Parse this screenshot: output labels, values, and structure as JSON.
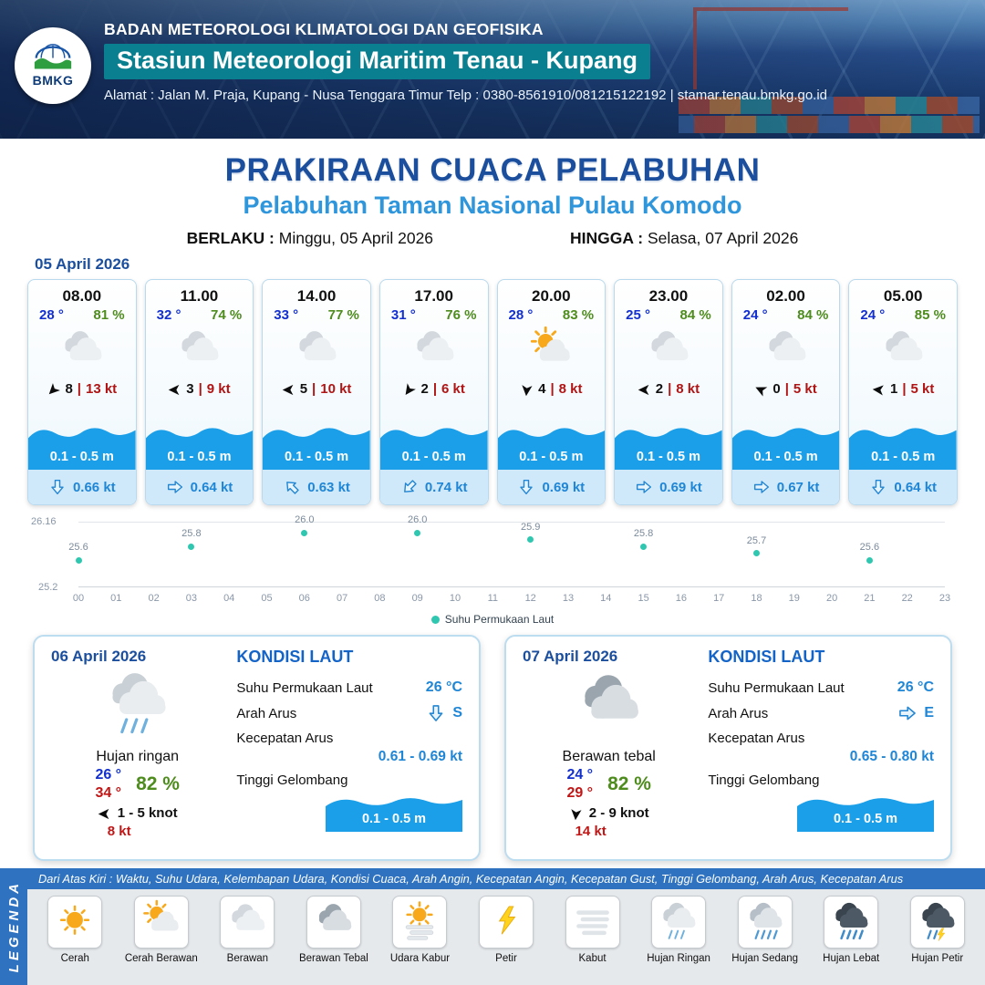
{
  "header": {
    "logo_label": "BMKG",
    "agency": "BADAN METEOROLOGI KLIMATOLOGI DAN GEOFISIKA",
    "station": "Stasiun Meteorologi Maritim Tenau - Kupang",
    "address": "Alamat : Jalan M. Praja, Kupang - Nusa Tenggara Timur Telp : 0380-8561910/081215122192  | stamar.tenau.bmkg.go.id"
  },
  "title": {
    "main": "PRAKIRAAN CUACA PELABUHAN",
    "subtitle": "Pelabuhan Taman Nasional Pulau Komodo",
    "berlaku_label": "BERLAKU :",
    "berlaku_value": "Minggu, 05 April 2026",
    "hingga_label": "HINGGA :",
    "hingga_value": "Selasa, 07 April 2026"
  },
  "forecast_date": "05 April 2026",
  "hourly": [
    {
      "time": "08.00",
      "temp": "28 °",
      "humidity": "81 %",
      "icon": "berawan",
      "wind_dir_deg": 135,
      "wind_speed": "8",
      "gust": "13 kt",
      "wave": "0.1 - 0.5 m",
      "current_dir_deg": 90,
      "current_speed": "0.66 kt"
    },
    {
      "time": "11.00",
      "temp": "32 °",
      "humidity": "74 %",
      "icon": "berawan",
      "wind_dir_deg": 180,
      "wind_speed": "3",
      "gust": "9 kt",
      "wave": "0.1 - 0.5 m",
      "current_dir_deg": 0,
      "current_speed": "0.64 kt"
    },
    {
      "time": "14.00",
      "temp": "33 °",
      "humidity": "77 %",
      "icon": "berawan",
      "wind_dir_deg": 180,
      "wind_speed": "5",
      "gust": "10 kt",
      "wave": "0.1 - 0.5 m",
      "current_dir_deg": 225,
      "current_speed": "0.63 kt"
    },
    {
      "time": "17.00",
      "temp": "31 °",
      "humidity": "76 %",
      "icon": "berawan",
      "wind_dir_deg": 125,
      "wind_speed": "2",
      "gust": "6 kt",
      "wave": "0.1 - 0.5 m",
      "current_dir_deg": 135,
      "current_speed": "0.74 kt"
    },
    {
      "time": "20.00",
      "temp": "28 °",
      "humidity": "83 %",
      "icon": "cerah-berawan",
      "wind_dir_deg": 95,
      "wind_speed": "4",
      "gust": "8 kt",
      "wave": "0.1 - 0.5 m",
      "current_dir_deg": 90,
      "current_speed": "0.69 kt"
    },
    {
      "time": "23.00",
      "temp": "25 °",
      "humidity": "84 %",
      "icon": "berawan",
      "wind_dir_deg": 180,
      "wind_speed": "2",
      "gust": "8 kt",
      "wave": "0.1 - 0.5 m",
      "current_dir_deg": 0,
      "current_speed": "0.69 kt"
    },
    {
      "time": "02.00",
      "temp": "24 °",
      "humidity": "84 %",
      "icon": "berawan",
      "wind_dir_deg": 205,
      "wind_speed": "0",
      "gust": "5 kt",
      "wave": "0.1 - 0.5 m",
      "current_dir_deg": 0,
      "current_speed": "0.67 kt"
    },
    {
      "time": "05.00",
      "temp": "24 °",
      "humidity": "85 %",
      "icon": "berawan",
      "wind_dir_deg": 185,
      "wind_speed": "1",
      "gust": "5 kt",
      "wave": "0.1 - 0.5 m",
      "current_dir_deg": 90,
      "current_speed": "0.64 kt"
    }
  ],
  "chart_data": {
    "type": "scatter",
    "title": "",
    "legend": "Suhu Permukaan Laut",
    "legend_position": "bottom",
    "x": [
      0,
      3,
      6,
      9,
      12,
      15,
      18,
      21
    ],
    "values": [
      25.6,
      25.8,
      26.0,
      26.0,
      25.9,
      25.8,
      25.7,
      25.6
    ],
    "x_ticks": [
      "00",
      "01",
      "02",
      "03",
      "04",
      "05",
      "06",
      "07",
      "08",
      "09",
      "10",
      "11",
      "12",
      "13",
      "14",
      "15",
      "16",
      "17",
      "18",
      "19",
      "20",
      "21",
      "22",
      "23"
    ],
    "ylim": [
      25.2,
      26.16
    ],
    "y_ticks": [
      "26.16",
      "25.2"
    ],
    "dot_color": "#2fc7b0",
    "grid": "minimal"
  },
  "daily": [
    {
      "date": "06 April 2026",
      "icon": "hujan-ringan",
      "condition": "Hujan ringan",
      "temp_min": "26 °",
      "humidity": "82 %",
      "temp_max": "34 °",
      "wind_dir_deg": 180,
      "wind_range": "1 - 5 knot",
      "gust": "8 kt",
      "sea": {
        "heading": "KONDISI LAUT",
        "sst_label": "Suhu Permukaan Laut",
        "sst": "26 °C",
        "current_dir_label": "Arah Arus",
        "current_dir_deg": 90,
        "current_dir": "S",
        "current_speed_label": "Kecepatan Arus",
        "current_speed": "0.61 - 0.69 kt",
        "wave_label": "Tinggi Gelombang",
        "wave": "0.1 - 0.5 m"
      }
    },
    {
      "date": "07 April 2026",
      "icon": "berawan-tebal",
      "condition": "Berawan tebal",
      "temp_min": "24 °",
      "humidity": "82 %",
      "temp_max": "29 °",
      "wind_dir_deg": 95,
      "wind_range": "2 - 9 knot",
      "gust": "14 kt",
      "sea": {
        "heading": "KONDISI LAUT",
        "sst_label": "Suhu Permukaan Laut",
        "sst": "26 °C",
        "current_dir_label": "Arah Arus",
        "current_dir_deg": 0,
        "current_dir": "E",
        "current_speed_label": "Kecepatan Arus",
        "current_speed": "0.65 - 0.80 kt",
        "wave_label": "Tinggi Gelombang",
        "wave": "0.1 - 0.5 m"
      }
    }
  ],
  "legend": {
    "title": "LEGENDA",
    "note": "Dari Atas Kiri : Waktu, Suhu Udara, Kelembapan Udara, Kondisi Cuaca, Arah Angin, Kecepatan Angin, Kecepatan Gust, Tinggi Gelombang, Arah Arus, Kecepatan Arus",
    "items": [
      {
        "label": "Cerah",
        "icon": "cerah"
      },
      {
        "label": "Cerah Berawan",
        "icon": "cerah-berawan"
      },
      {
        "label": "Berawan",
        "icon": "berawan"
      },
      {
        "label": "Berawan Tebal",
        "icon": "berawan-tebal"
      },
      {
        "label": "Udara Kabur",
        "icon": "udara-kabur"
      },
      {
        "label": "Petir",
        "icon": "petir"
      },
      {
        "label": "Kabut",
        "icon": "kabut"
      },
      {
        "label": "Hujan Ringan",
        "icon": "hujan-ringan"
      },
      {
        "label": "Hujan Sedang",
        "icon": "hujan-sedang"
      },
      {
        "label": "Hujan Lebat",
        "icon": "hujan-lebat"
      },
      {
        "label": "Hujan Petir",
        "icon": "hujan-petir"
      }
    ]
  },
  "colors": {
    "accent_blue": "#1b4f9e",
    "subtitle_blue": "#2f96dc",
    "teal_banner": "#0a7f8f",
    "temp_blue": "#1330cf",
    "humidity_green": "#4e8c1e",
    "wind_red": "#b01414",
    "wave_blue": "#1b9fe8",
    "current_blue": "#1f86d6",
    "dot_teal": "#2fc7b0",
    "legend_bar_blue": "#2e72c0"
  }
}
